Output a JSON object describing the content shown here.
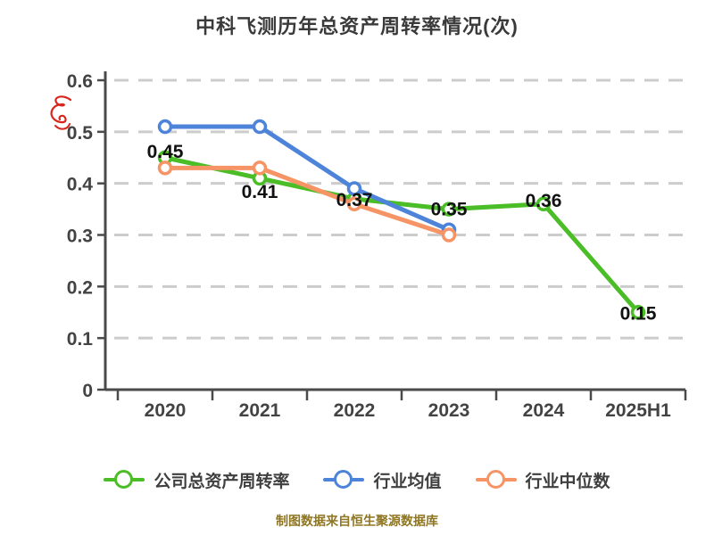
{
  "header": {
    "title": "中科飞测历年总资产周转率情况(次)"
  },
  "footer": {
    "source_note": "制图数据来自恒生聚源数据库"
  },
  "watermark": {
    "name": "red-scribble-mark",
    "color": "#d7261e"
  },
  "colors": {
    "background": "#ffffff",
    "title": "#3a3a3a",
    "axis": "#4a4a4a",
    "tick_label": "#434343",
    "grid": "#cccccc",
    "data_label": "#111111",
    "legend_text": "#3f3f3f",
    "source_text": "#8f7622",
    "marker_fill": "#ffffff"
  },
  "chart_data": {
    "type": "line",
    "title": "中科飞测历年总资产周转率情况(次)",
    "categories": [
      "2020",
      "2021",
      "2022",
      "2023",
      "2024",
      "2025H1"
    ],
    "series": [
      {
        "name": "公司总资产周转率",
        "color": "#4abd27",
        "values": [
          0.45,
          0.41,
          0.37,
          0.35,
          0.36,
          0.15
        ],
        "data_labels": [
          "0.45",
          "0.41",
          "0.37",
          "0.35",
          "0.36",
          "0.15"
        ]
      },
      {
        "name": "行业均值",
        "color": "#4e83da",
        "values": [
          0.51,
          0.51,
          0.39,
          0.31,
          null,
          null
        ],
        "data_labels": []
      },
      {
        "name": "行业中位数",
        "color": "#f79465",
        "values": [
          0.43,
          0.43,
          0.36,
          0.3,
          null,
          null
        ],
        "data_labels": []
      }
    ],
    "xlabel": "",
    "ylabel": "",
    "ylim": [
      0,
      0.6
    ],
    "ytick_labels": [
      "0",
      "0.1",
      "0.2",
      "0.3",
      "0.4",
      "0.5",
      "0.6"
    ],
    "grid": "dashed-horizontal",
    "legend_position": "bottom",
    "marker_style": "white-filled-circle"
  }
}
